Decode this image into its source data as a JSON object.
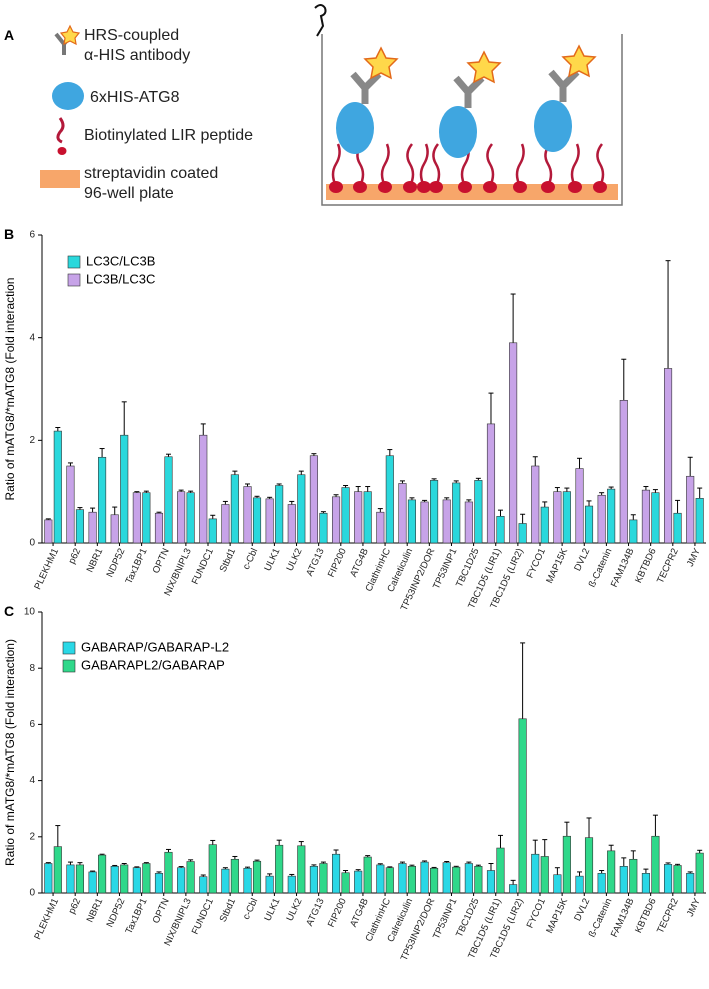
{
  "panel_a": {
    "label": "A",
    "legend": [
      "HRS-coupled",
      "α-HIS antibody",
      "6xHIS-ATG8",
      "Biotinylated LIR peptide",
      "streptavidin coated",
      "96-well plate"
    ]
  },
  "chart_data": [
    {
      "type": "bar",
      "panel_label": "B",
      "ylabel": "Ratio of mATG8/*mATG8 (Fold interaction",
      "categories": [
        "PLEKHM1",
        "p62",
        "NBR1",
        "NDP52",
        "Tax1BP1",
        "OPTN",
        "NIX/BNIPL3",
        "FUNDC1",
        "Stbd1",
        "c-Cbl",
        "ULK1",
        "ULK2",
        "ATG13",
        "FIP200",
        "ATG4B",
        "ClathrinHC",
        "Calreticulin",
        "TP53INP2/DOR",
        "TP53INP1",
        "TBC1D25",
        "TBC1D5 (LIR1)",
        "TBC1D5 (LIR2)",
        "FYCO1",
        "MAP15K",
        "DVL2",
        "ß-Catenin",
        "FAM134B",
        "KBTBD6",
        "TECPR2",
        "JMY"
      ],
      "series": [
        {
          "name": "LC3C/LC3B",
          "color": "#2ad8dc",
          "values": [
            2.18,
            0.65,
            1.67,
            2.1,
            0.98,
            1.68,
            0.98,
            0.47,
            1.33,
            0.88,
            1.12,
            1.33,
            0.58,
            1.08,
            1.0,
            1.7,
            0.84,
            1.22,
            1.17,
            1.22,
            0.52,
            0.38,
            0.7,
            1.0,
            0.72,
            1.05,
            0.45,
            0.98,
            0.58,
            0.87
          ],
          "errors": [
            0.07,
            0.04,
            0.17,
            0.65,
            0.03,
            0.05,
            0.03,
            0.07,
            0.07,
            0.03,
            0.03,
            0.07,
            0.03,
            0.04,
            0.1,
            0.12,
            0.04,
            0.03,
            0.04,
            0.04,
            0.12,
            0.18,
            0.1,
            0.07,
            0.1,
            0.04,
            0.1,
            0.06,
            0.25,
            0.2
          ]
        },
        {
          "name": "LC3B/LC3C",
          "color": "#c7a3e8",
          "values": [
            0.45,
            1.5,
            0.6,
            0.55,
            0.98,
            0.58,
            1.0,
            2.1,
            0.75,
            1.1,
            0.86,
            0.75,
            1.7,
            0.9,
            1.0,
            0.6,
            1.16,
            0.8,
            0.84,
            0.8,
            2.32,
            3.9,
            1.5,
            1.0,
            1.45,
            0.93,
            2.78,
            1.03,
            3.4,
            1.3
          ],
          "errors": [
            0.02,
            0.06,
            0.08,
            0.15,
            0.02,
            0.02,
            0.03,
            0.22,
            0.06,
            0.05,
            0.03,
            0.06,
            0.04,
            0.04,
            0.1,
            0.07,
            0.05,
            0.03,
            0.04,
            0.04,
            0.6,
            0.95,
            0.18,
            0.08,
            0.2,
            0.05,
            0.8,
            0.07,
            2.1,
            0.37
          ]
        }
      ],
      "ylim": [
        0,
        6
      ],
      "yticks": [
        0,
        2,
        4,
        6
      ]
    },
    {
      "type": "bar",
      "panel_label": "C",
      "ylabel": "Ratio of mATG8/*mATG8 (Fold interaction)",
      "categories": [
        "PLEKHM1",
        "p62",
        "NBR1",
        "NDP52",
        "Tax1BP1",
        "OPTN",
        "NIX/BNIPL3",
        "FUNDC1",
        "Stbd1",
        "c-Cbl",
        "ULK1",
        "ULK2",
        "ATG13",
        "FIP200",
        "ATG4B",
        "ClathrinHC",
        "Calreticulin",
        "TP53INP2/DOR",
        "TP53INP1",
        "TBC1D25",
        "TBC1D5 (LIR1)",
        "TBC1D5 (LIR2)",
        "FYCO1",
        "MAP15K",
        "DVL2",
        "ß-Catenin",
        "FAM134B",
        "KBTBD6",
        "TECPR2",
        "JMY"
      ],
      "series": [
        {
          "name": "GABARAP/GABARAP-L2",
          "color": "#2ad8e6",
          "values": [
            1.05,
            1.0,
            0.75,
            0.95,
            0.9,
            0.7,
            0.9,
            0.58,
            0.85,
            0.88,
            0.6,
            0.6,
            0.95,
            1.38,
            0.78,
            1.0,
            1.05,
            1.1,
            1.08,
            1.05,
            0.8,
            0.3,
            1.38,
            0.65,
            0.6,
            0.7,
            0.95,
            0.7,
            1.02,
            0.7
          ],
          "errors": [
            0.03,
            0.1,
            0.03,
            0.03,
            0.03,
            0.05,
            0.04,
            0.06,
            0.05,
            0.04,
            0.08,
            0.06,
            0.05,
            0.15,
            0.05,
            0.04,
            0.05,
            0.04,
            0.04,
            0.05,
            0.25,
            0.15,
            0.5,
            0.25,
            0.15,
            0.1,
            0.3,
            0.15,
            0.05,
            0.05
          ]
        },
        {
          "name": "GABARAPL2/GABARAP",
          "color": "#2fd88a",
          "values": [
            1.65,
            1.0,
            1.35,
            1.0,
            1.05,
            1.45,
            1.12,
            1.72,
            1.2,
            1.13,
            1.7,
            1.68,
            1.05,
            0.72,
            1.28,
            0.9,
            0.95,
            0.88,
            0.92,
            0.95,
            1.6,
            6.2,
            1.3,
            2.02,
            1.97,
            1.5,
            1.2,
            2.02,
            0.98,
            1.42
          ],
          "errors": [
            0.75,
            0.08,
            0.03,
            0.05,
            0.03,
            0.1,
            0.06,
            0.15,
            0.1,
            0.04,
            0.18,
            0.15,
            0.05,
            0.08,
            0.05,
            0.03,
            0.04,
            0.03,
            0.03,
            0.04,
            0.45,
            2.7,
            0.6,
            0.5,
            0.7,
            0.2,
            0.3,
            0.75,
            0.04,
            0.1
          ]
        }
      ],
      "ylim": [
        0,
        10
      ],
      "yticks": [
        0,
        2,
        4,
        6,
        8,
        10
      ]
    }
  ]
}
